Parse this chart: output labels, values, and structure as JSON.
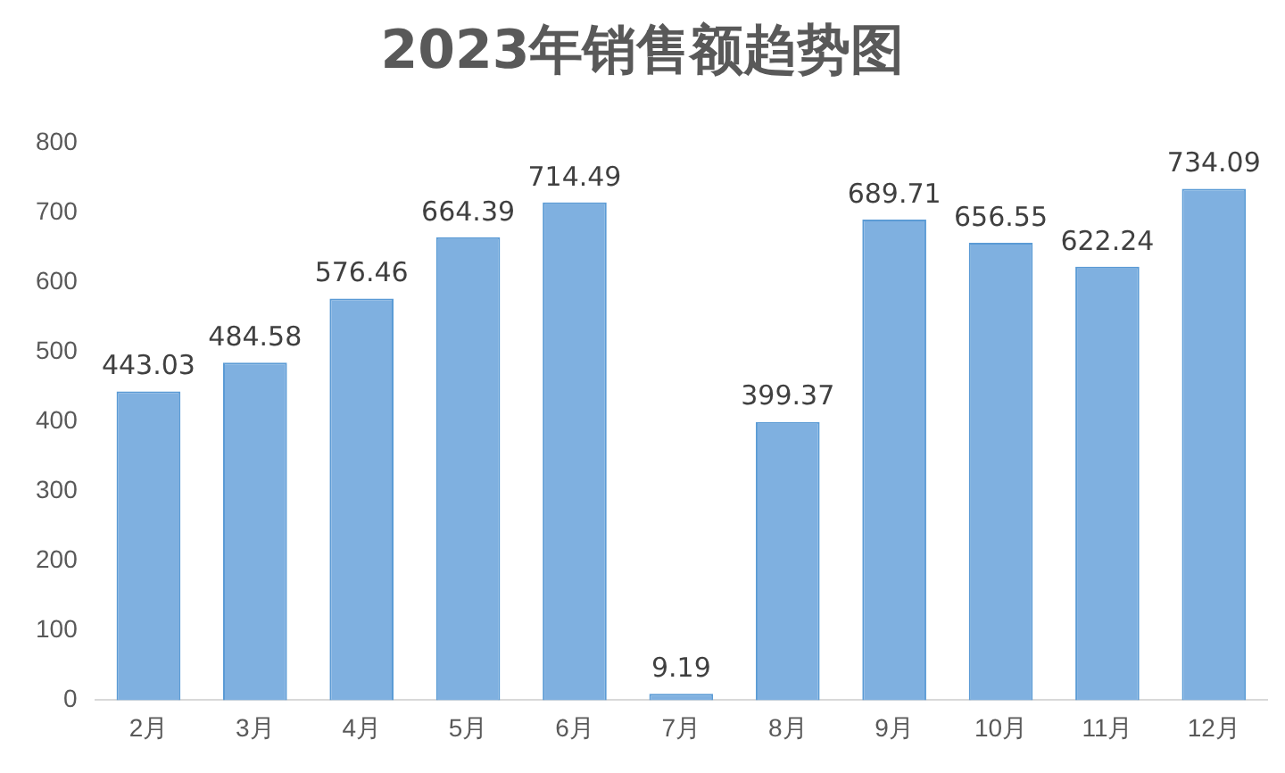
{
  "chart_data": {
    "type": "bar",
    "title": "2023年销售额趋势图",
    "categories": [
      "2月",
      "3月",
      "4月",
      "5月",
      "6月",
      "7月",
      "8月",
      "9月",
      "10月",
      "11月",
      "12月"
    ],
    "values": [
      443.03,
      484.58,
      576.46,
      664.39,
      714.49,
      9.19,
      399.37,
      689.71,
      656.55,
      622.24,
      734.09
    ],
    "color": "#7fb0e0",
    "ylim": [
      0,
      800
    ],
    "yticks": [
      0,
      100,
      200,
      300,
      400,
      500,
      600,
      700,
      800
    ],
    "grid": false,
    "legend": false,
    "data_labels": true
  }
}
